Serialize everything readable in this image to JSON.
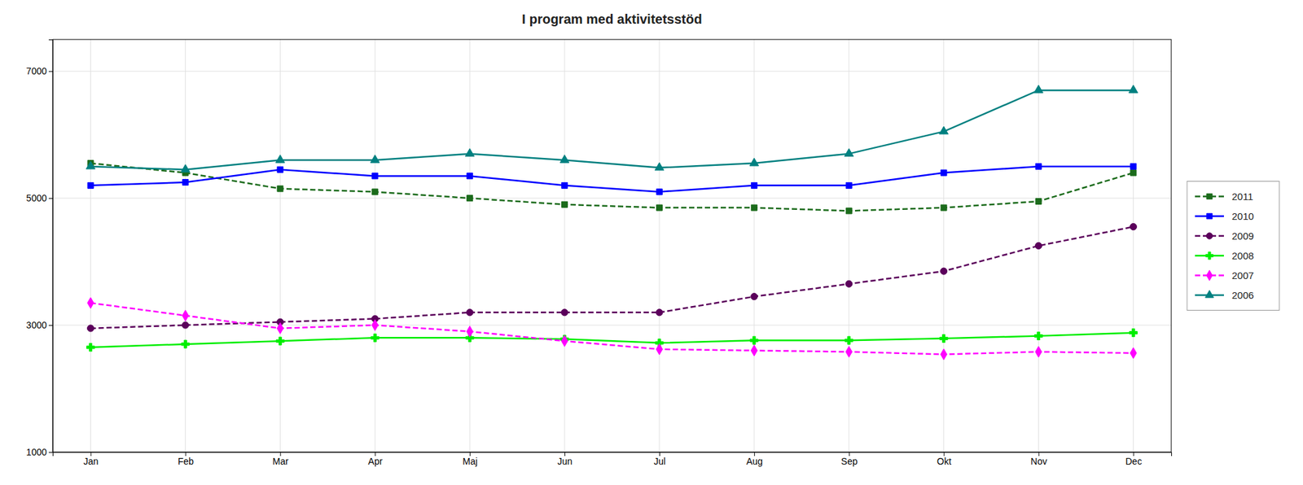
{
  "chart_data": {
    "type": "line",
    "title": "I program med aktivitetsstöd",
    "categories": [
      "Jan",
      "Feb",
      "Mar",
      "Apr",
      "Maj",
      "Jun",
      "Jul",
      "Aug",
      "Sep",
      "Okt",
      "Nov",
      "Dec"
    ],
    "series": [
      {
        "name": "2011",
        "color": "#1B6B1B",
        "line_style": "dashed",
        "marker": "square",
        "values": [
          5550,
          5400,
          5150,
          5100,
          5000,
          4900,
          4850,
          4850,
          4800,
          4850,
          4950,
          5400
        ]
      },
      {
        "name": "2010",
        "color": "#0000FF",
        "line_style": "solid",
        "marker": "square",
        "values": [
          5200,
          5250,
          5450,
          5350,
          5350,
          5200,
          5100,
          5200,
          5200,
          5400,
          5500,
          5500
        ]
      },
      {
        "name": "2009",
        "color": "#5B005B",
        "line_style": "dashed",
        "marker": "circle",
        "values": [
          2950,
          3000,
          3050,
          3100,
          3200,
          3200,
          3200,
          3450,
          3650,
          3850,
          4250,
          4550
        ]
      },
      {
        "name": "2008",
        "color": "#00EE00",
        "line_style": "solid",
        "marker": "plus",
        "values": [
          2650,
          2700,
          2750,
          2800,
          2800,
          2780,
          2720,
          2760,
          2760,
          2790,
          2830,
          2880
        ]
      },
      {
        "name": "2007",
        "color": "#FF00FF",
        "line_style": "dashed",
        "marker": "diamond",
        "values": [
          3350,
          3150,
          2950,
          3000,
          2900,
          2750,
          2620,
          2600,
          2580,
          2540,
          2580,
          2560
        ]
      },
      {
        "name": "2006",
        "color": "#008080",
        "line_style": "solid",
        "marker": "triangle",
        "values": [
          5500,
          5450,
          5600,
          5600,
          5700,
          5600,
          5480,
          5550,
          5700,
          6050,
          6700,
          6700
        ]
      }
    ],
    "ylim": [
      1000,
      7500
    ],
    "yticks": [
      1000,
      3000,
      5000,
      7000
    ],
    "grid": true,
    "legend": "right"
  }
}
